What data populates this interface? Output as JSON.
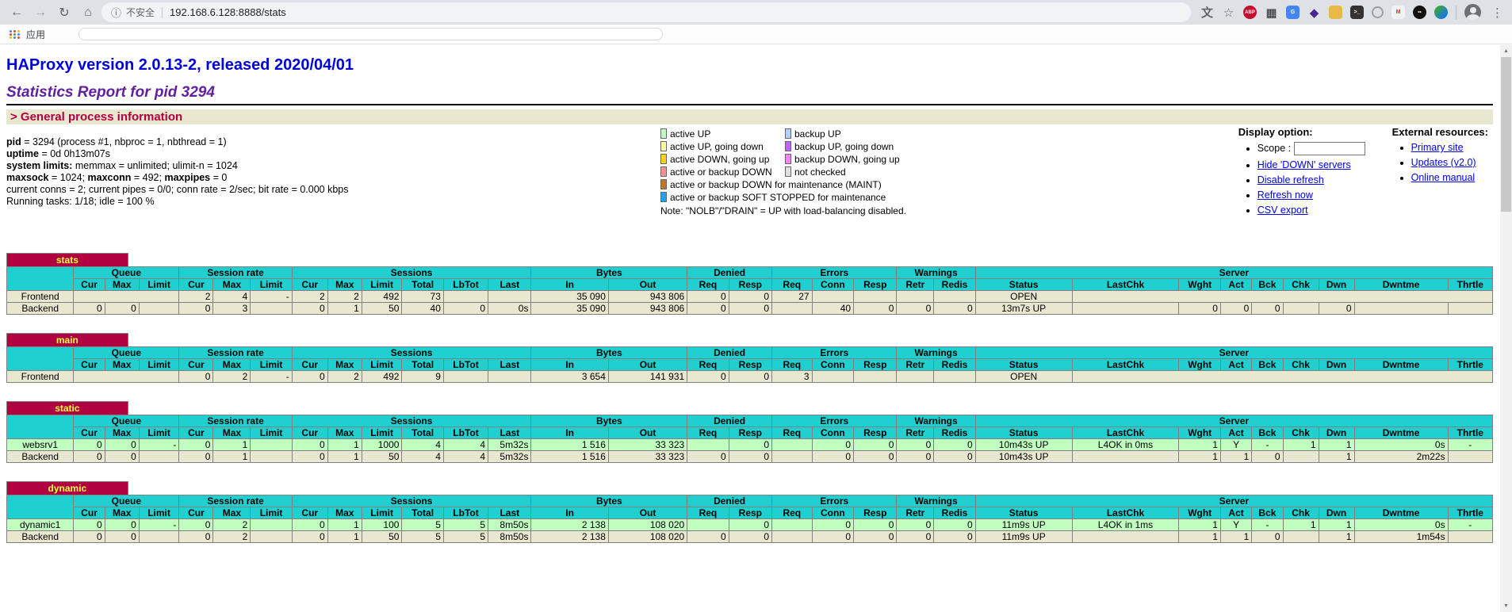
{
  "browser": {
    "nav_buttons": [
      {
        "name": "back-button",
        "glyph": "←"
      },
      {
        "name": "forward-button",
        "glyph": "→",
        "dim": true
      },
      {
        "name": "reload-button",
        "glyph": "↻"
      },
      {
        "name": "home-button",
        "glyph": "⌂"
      }
    ],
    "address_bar": {
      "info_icon": "ⓘ",
      "security_label": "不安全",
      "url": "192.168.6.128:8888/stats"
    },
    "omni_actions": [
      {
        "name": "page-translate-icon",
        "glyph": "文",
        "fg": "#5f6368",
        "shape": "plain"
      },
      {
        "name": "bookmark-star-icon",
        "glyph": "☆",
        "fg": "#5f6368",
        "shape": "plain"
      }
    ],
    "extensions": [
      {
        "name": "adblock-icon",
        "glyph": "ABP",
        "bg": "#c70d2c",
        "fg": "#ffffff",
        "shape": "circle"
      },
      {
        "name": "qr-grid-icon",
        "glyph": "▦",
        "fg": "#202124",
        "shape": "plain"
      },
      {
        "name": "translate-ext-icon",
        "glyph": "G",
        "bg": "#4285f4",
        "fg": "#ffffff",
        "shape": "rounded"
      },
      {
        "name": "purple-diamond-icon",
        "glyph": "◆",
        "fg": "#45278f",
        "shape": "plain"
      },
      {
        "name": "cat-ext-icon",
        "glyph": "",
        "bg": "#e8b84b",
        "fg": "#7a5b16",
        "shape": "rounded"
      },
      {
        "name": "terminal-ext-icon",
        "glyph": ">_",
        "bg": "#333333",
        "fg": "#ffffff",
        "shape": "rounded"
      },
      {
        "name": "hexagon-ext-icon",
        "glyph": "",
        "shape": "ring"
      },
      {
        "name": "mail-checker-icon",
        "glyph": "M",
        "bg": "#f1f3f4",
        "fg": "#d93025",
        "shape": "rounded"
      },
      {
        "name": "panda-ext-icon",
        "glyph": "••",
        "bg": "#111111",
        "fg": "#ffffff",
        "shape": "circle"
      },
      {
        "name": "idm-globe-icon",
        "glyph": "",
        "shape": "globe"
      }
    ],
    "menu_glyph": "⋮",
    "bookmarks": {
      "apps_label": "应用"
    }
  },
  "page": {
    "title": "HAProxy version 2.0.13-2, released 2020/04/01",
    "subtitle": "Statistics Report for pid 3294",
    "section_heading": "> General process information",
    "process_info": [
      [
        {
          "t": "pid",
          "b": true
        },
        {
          "t": " = 3294 (process #1, nbproc = 1, nbthread = 1)"
        }
      ],
      [
        {
          "t": "uptime",
          "b": true
        },
        {
          "t": " = 0d 0h13m07s"
        }
      ],
      [
        {
          "t": "system limits:",
          "b": true
        },
        {
          "t": " memmax = unlimited; ulimit-n = 1024"
        }
      ],
      [
        {
          "t": "maxsock",
          "b": true
        },
        {
          "t": " = 1024; "
        },
        {
          "t": "maxconn",
          "b": true
        },
        {
          "t": " = 492; "
        },
        {
          "t": "maxpipes",
          "b": true
        },
        {
          "t": " = 0"
        }
      ],
      [
        {
          "t": "current conns = 2; current pipes = 0/0; conn rate = 2/sec; bit rate = 0.000 kbps"
        }
      ],
      [
        {
          "t": "Running tasks: 1/18; idle = 100 %"
        }
      ]
    ],
    "legend": {
      "rows": [
        [
          {
            "label": "active UP",
            "color": "#c0ffc0"
          },
          {
            "label": "backup UP",
            "color": "#b0d0ff"
          }
        ],
        [
          {
            "label": "active UP, going down",
            "color": "#ffffa0"
          },
          {
            "label": "backup UP, going down",
            "color": "#c060ff"
          }
        ],
        [
          {
            "label": "active DOWN, going up",
            "color": "#ffd020"
          },
          {
            "label": "backup DOWN, going up",
            "color": "#ff80ff"
          }
        ],
        [
          {
            "label": "active or backup DOWN",
            "color": "#ff9090"
          },
          {
            "label": "not checked",
            "color": "#e0e0e0"
          }
        ],
        [
          {
            "label": "active or backup DOWN for maintenance (MAINT)",
            "color": "#c07820",
            "wide": true
          }
        ],
        [
          {
            "label": "active or backup SOFT STOPPED for maintenance",
            "color": "#20a0ff",
            "wide": true
          }
        ]
      ],
      "note": "Note: \"NOLB\"/\"DRAIN\" = UP with load-balancing disabled."
    },
    "display_option": {
      "heading": "Display option:",
      "scope_label": "Scope :",
      "links": [
        "Hide 'DOWN' servers",
        "Disable refresh",
        "Refresh now",
        "CSV export"
      ]
    },
    "external_resources": {
      "heading": "External resources:",
      "links": [
        "Primary site",
        "Updates (v2.0)",
        "Online manual"
      ]
    },
    "table_headers": {
      "groups": [
        {
          "label": "Queue",
          "span": 3
        },
        {
          "label": "Session rate",
          "span": 3
        },
        {
          "label": "Sessions",
          "span": 6
        },
        {
          "label": "Bytes",
          "span": 2
        },
        {
          "label": "Denied",
          "span": 2
        },
        {
          "label": "Errors",
          "span": 3
        },
        {
          "label": "Warnings",
          "span": 2
        },
        {
          "label": "Server",
          "span": 9
        }
      ],
      "columns": [
        "Cur",
        "Max",
        "Limit",
        "Cur",
        "Max",
        "Limit",
        "Cur",
        "Max",
        "Limit",
        "Total",
        "LbTot",
        "Last",
        "In",
        "Out",
        "Req",
        "Resp",
        "Req",
        "Conn",
        "Resp",
        "Retr",
        "Redis",
        "Status",
        "LastChk",
        "Wght",
        "Act",
        "Bck",
        "Chk",
        "Dwn",
        "Dwntme",
        "Thrtle"
      ]
    },
    "tables": [
      {
        "name": "stats",
        "rows": [
          {
            "label": "Frontend",
            "cls": "frontend",
            "cells": [
              {
                "t": "",
                "cs": 3
              },
              {
                "t": "2",
                "u": 1
              },
              {
                "t": "4",
                "u": 1
              },
              {
                "t": "-"
              },
              {
                "t": "2"
              },
              {
                "t": "2"
              },
              {
                "t": "492"
              },
              {
                "t": "73",
                "u": 1
              },
              {
                "t": ""
              },
              {
                "t": ""
              },
              {
                "t": "35 090"
              },
              {
                "t": "943 806"
              },
              {
                "t": "0"
              },
              {
                "t": "0"
              },
              {
                "t": "27"
              },
              {
                "t": ""
              },
              {
                "t": ""
              },
              {
                "t": ""
              },
              {
                "t": ""
              },
              {
                "t": "OPEN",
                "a": "c"
              },
              {
                "t": "",
                "cs": 8
              }
            ]
          },
          {
            "label": "Backend",
            "cls": "backend",
            "cells": [
              {
                "t": "0"
              },
              {
                "t": "0"
              },
              {
                "t": ""
              },
              {
                "t": "0"
              },
              {
                "t": "3"
              },
              {
                "t": ""
              },
              {
                "t": "0"
              },
              {
                "t": "1"
              },
              {
                "t": "50"
              },
              {
                "t": "40",
                "u": 1
              },
              {
                "t": "0"
              },
              {
                "t": "0s"
              },
              {
                "t": "35 090"
              },
              {
                "t": "943 806"
              },
              {
                "t": "0"
              },
              {
                "t": "0"
              },
              {
                "t": ""
              },
              {
                "t": "40"
              },
              {
                "t": "0",
                "u": 1
              },
              {
                "t": "0"
              },
              {
                "t": "0"
              },
              {
                "t": "13m7s UP",
                "a": "c"
              },
              {
                "t": ""
              },
              {
                "t": "0"
              },
              {
                "t": "0"
              },
              {
                "t": "0"
              },
              {
                "t": ""
              },
              {
                "t": "0"
              },
              {
                "t": ""
              },
              {
                "t": ""
              }
            ]
          }
        ]
      },
      {
        "name": "main",
        "rows": [
          {
            "label": "Frontend",
            "cls": "frontend",
            "cells": [
              {
                "t": "",
                "cs": 3
              },
              {
                "t": "0",
                "u": 1
              },
              {
                "t": "2",
                "u": 1
              },
              {
                "t": "-"
              },
              {
                "t": "0"
              },
              {
                "t": "2"
              },
              {
                "t": "492"
              },
              {
                "t": "9",
                "u": 1
              },
              {
                "t": ""
              },
              {
                "t": ""
              },
              {
                "t": "3 654"
              },
              {
                "t": "141 931"
              },
              {
                "t": "0"
              },
              {
                "t": "0"
              },
              {
                "t": "3"
              },
              {
                "t": ""
              },
              {
                "t": ""
              },
              {
                "t": ""
              },
              {
                "t": ""
              },
              {
                "t": "OPEN",
                "a": "c"
              },
              {
                "t": "",
                "cs": 8
              }
            ]
          }
        ]
      },
      {
        "name": "static",
        "rows": [
          {
            "label": "websrv1",
            "cls": "active_up",
            "cells": [
              {
                "t": "0"
              },
              {
                "t": "0"
              },
              {
                "t": "-"
              },
              {
                "t": "0"
              },
              {
                "t": "1"
              },
              {
                "t": ""
              },
              {
                "t": "0",
                "u": 1
              },
              {
                "t": "1"
              },
              {
                "t": "1000"
              },
              {
                "t": "4",
                "u": 1
              },
              {
                "t": "4"
              },
              {
                "t": "5m32s"
              },
              {
                "t": "1 516"
              },
              {
                "t": "33 323"
              },
              {
                "t": ""
              },
              {
                "t": "0"
              },
              {
                "t": ""
              },
              {
                "t": "0"
              },
              {
                "t": "0",
                "u": 1
              },
              {
                "t": "0"
              },
              {
                "t": "0"
              },
              {
                "t": "10m43s UP",
                "a": "c"
              },
              {
                "t": "L4OK in 0ms",
                "a": "c",
                "u": 1
              },
              {
                "t": "1"
              },
              {
                "t": "Y",
                "a": "c"
              },
              {
                "t": "-",
                "a": "c"
              },
              {
                "t": "1",
                "u": 1
              },
              {
                "t": "1"
              },
              {
                "t": "0s"
              },
              {
                "t": "-",
                "a": "c"
              }
            ]
          },
          {
            "label": "Backend",
            "cls": "backend",
            "cells": [
              {
                "t": "0"
              },
              {
                "t": "0"
              },
              {
                "t": ""
              },
              {
                "t": "0"
              },
              {
                "t": "1"
              },
              {
                "t": ""
              },
              {
                "t": "0"
              },
              {
                "t": "1"
              },
              {
                "t": "50"
              },
              {
                "t": "4",
                "u": 1
              },
              {
                "t": "4"
              },
              {
                "t": "5m32s"
              },
              {
                "t": "1 516"
              },
              {
                "t": "33 323"
              },
              {
                "t": "0"
              },
              {
                "t": "0"
              },
              {
                "t": ""
              },
              {
                "t": "0"
              },
              {
                "t": "0",
                "u": 1
              },
              {
                "t": "0"
              },
              {
                "t": "0"
              },
              {
                "t": "10m43s UP",
                "a": "c"
              },
              {
                "t": ""
              },
              {
                "t": "1"
              },
              {
                "t": "1"
              },
              {
                "t": "0"
              },
              {
                "t": ""
              },
              {
                "t": "1"
              },
              {
                "t": "2m22s"
              },
              {
                "t": ""
              }
            ]
          }
        ]
      },
      {
        "name": "dynamic",
        "rows": [
          {
            "label": "dynamic1",
            "cls": "active_up",
            "cells": [
              {
                "t": "0"
              },
              {
                "t": "0"
              },
              {
                "t": "-"
              },
              {
                "t": "0"
              },
              {
                "t": "2"
              },
              {
                "t": ""
              },
              {
                "t": "0",
                "u": 1
              },
              {
                "t": "1"
              },
              {
                "t": "100"
              },
              {
                "t": "5",
                "u": 1
              },
              {
                "t": "5"
              },
              {
                "t": "8m50s"
              },
              {
                "t": "2 138"
              },
              {
                "t": "108 020"
              },
              {
                "t": ""
              },
              {
                "t": "0"
              },
              {
                "t": ""
              },
              {
                "t": "0"
              },
              {
                "t": "0",
                "u": 1
              },
              {
                "t": "0"
              },
              {
                "t": "0"
              },
              {
                "t": "11m9s UP",
                "a": "c"
              },
              {
                "t": "L4OK in 1ms",
                "a": "c",
                "u": 1
              },
              {
                "t": "1"
              },
              {
                "t": "Y",
                "a": "c"
              },
              {
                "t": "-",
                "a": "c"
              },
              {
                "t": "1",
                "u": 1
              },
              {
                "t": "1"
              },
              {
                "t": "0s"
              },
              {
                "t": "-",
                "a": "c"
              }
            ]
          },
          {
            "label": "Backend",
            "cls": "backend",
            "cells": [
              {
                "t": "0"
              },
              {
                "t": "0"
              },
              {
                "t": ""
              },
              {
                "t": "0"
              },
              {
                "t": "2"
              },
              {
                "t": ""
              },
              {
                "t": "0"
              },
              {
                "t": "1"
              },
              {
                "t": "50"
              },
              {
                "t": "5",
                "u": 1
              },
              {
                "t": "5"
              },
              {
                "t": "8m50s"
              },
              {
                "t": "2 138"
              },
              {
                "t": "108 020"
              },
              {
                "t": "0"
              },
              {
                "t": "0"
              },
              {
                "t": ""
              },
              {
                "t": "0"
              },
              {
                "t": "0",
                "u": 1
              },
              {
                "t": "0"
              },
              {
                "t": "0"
              },
              {
                "t": "11m9s UP",
                "a": "c"
              },
              {
                "t": ""
              },
              {
                "t": "1"
              },
              {
                "t": "1"
              },
              {
                "t": "0"
              },
              {
                "t": ""
              },
              {
                "t": "1"
              },
              {
                "t": "1m54s"
              },
              {
                "t": ""
              }
            ]
          }
        ]
      }
    ]
  }
}
